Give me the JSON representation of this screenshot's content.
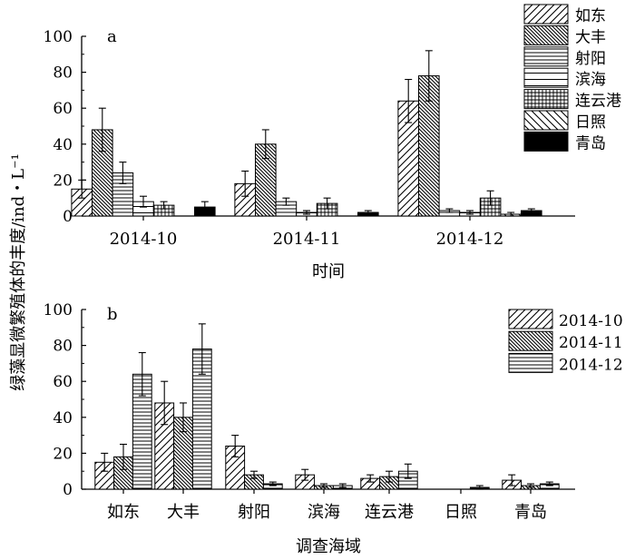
{
  "ylabel": "绿藻显微繁殖体的丰度/ind・L⁻¹",
  "chart_data": [
    {
      "type": "bar",
      "panel": "a",
      "xlabel": "时间",
      "categories": [
        "2014-10",
        "2014-11",
        "2014-12"
      ],
      "ylim": [
        0,
        100
      ],
      "yticks": [
        0,
        20,
        40,
        60,
        80,
        100
      ],
      "legend_position": "top-right, outside",
      "series": [
        {
          "name": "如东",
          "pattern": "diag-right",
          "values": [
            15,
            18,
            64
          ],
          "errors": [
            5,
            7,
            12
          ]
        },
        {
          "name": "大丰",
          "pattern": "diag-left-dense",
          "values": [
            48,
            40,
            78
          ],
          "errors": [
            12,
            8,
            14
          ]
        },
        {
          "name": "射阳",
          "pattern": "horizontal",
          "values": [
            24,
            8,
            3
          ],
          "errors": [
            6,
            2,
            1
          ]
        },
        {
          "name": "滨海",
          "pattern": "horizontal-sparse",
          "values": [
            8,
            2,
            2
          ],
          "errors": [
            3,
            1,
            1
          ]
        },
        {
          "name": "连云港",
          "pattern": "grid",
          "values": [
            6,
            7,
            10
          ],
          "errors": [
            2,
            3,
            4
          ]
        },
        {
          "name": "日照",
          "pattern": "diag-left",
          "values": [
            0,
            0,
            1
          ],
          "errors": [
            0,
            0,
            1
          ]
        },
        {
          "name": "青岛",
          "pattern": "solid",
          "values": [
            5,
            2,
            3
          ],
          "errors": [
            3,
            1,
            1
          ]
        }
      ]
    },
    {
      "type": "bar",
      "panel": "b",
      "xlabel": "调查海域",
      "categories": [
        "如东",
        "大丰",
        "射阳",
        "滨海",
        "连云港",
        "日照",
        "青岛"
      ],
      "ylim": [
        0,
        100
      ],
      "yticks": [
        0,
        20,
        40,
        60,
        80,
        100
      ],
      "legend_position": "top-right",
      "series": [
        {
          "name": "2014-10",
          "pattern": "diag-right",
          "values": [
            15,
            48,
            24,
            8,
            6,
            0,
            5
          ],
          "errors": [
            5,
            12,
            6,
            3,
            2,
            0,
            3
          ]
        },
        {
          "name": "2014-11",
          "pattern": "diag-left-dense",
          "values": [
            18,
            40,
            8,
            2,
            7,
            0,
            2
          ],
          "errors": [
            7,
            8,
            2,
            1,
            3,
            0,
            1
          ]
        },
        {
          "name": "2014-12",
          "pattern": "horizontal",
          "values": [
            64,
            78,
            3,
            2,
            10,
            1,
            3
          ],
          "errors": [
            12,
            14,
            1,
            1,
            4,
            1,
            1
          ]
        }
      ]
    }
  ]
}
